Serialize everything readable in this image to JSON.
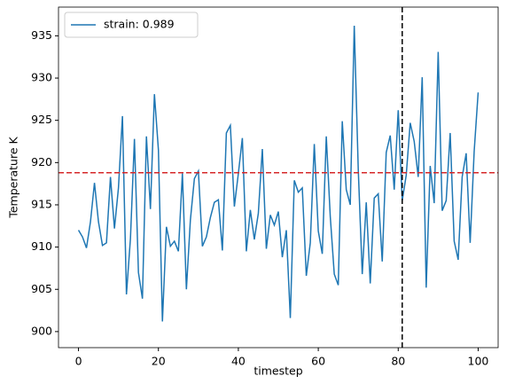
{
  "chart_data": {
    "type": "line",
    "xlabel": "timestep",
    "ylabel": "Temperature K",
    "x": [
      0,
      1,
      2,
      3,
      4,
      5,
      6,
      7,
      8,
      9,
      10,
      11,
      12,
      13,
      14,
      15,
      16,
      17,
      18,
      19,
      20,
      21,
      22,
      23,
      24,
      25,
      26,
      27,
      28,
      29,
      30,
      31,
      32,
      33,
      34,
      35,
      36,
      37,
      38,
      39,
      40,
      41,
      42,
      43,
      44,
      45,
      46,
      47,
      48,
      49,
      50,
      51,
      52,
      53,
      54,
      55,
      56,
      57,
      58,
      59,
      60,
      61,
      62,
      63,
      64,
      65,
      66,
      67,
      68,
      69,
      70,
      71,
      72,
      73,
      74,
      75,
      76,
      77,
      78,
      79,
      80,
      81,
      82,
      83,
      84,
      85,
      86,
      87,
      88,
      89,
      90,
      91,
      92,
      93,
      94,
      95,
      96,
      97,
      98,
      99,
      100
    ],
    "series": [
      {
        "name": "strain: 0.989",
        "color": "#1f77b4",
        "values": [
          912,
          911.2,
          909.9,
          913,
          917.6,
          913,
          910.2,
          910.5,
          918.3,
          912.2,
          917,
          925.5,
          904.4,
          911,
          922.8,
          907,
          903.9,
          923.1,
          914.5,
          928.1,
          921.5,
          901.2,
          912.4,
          910.1,
          910.7,
          909.5,
          918.7,
          905,
          913.2,
          918.1,
          919,
          910.1,
          911.2,
          913.5,
          915.3,
          915.6,
          909.6,
          923.5,
          924.4,
          914.8,
          918.7,
          922.9,
          909.5,
          914.4,
          910.9,
          914,
          921.6,
          909.8,
          913.8,
          912.6,
          914.2,
          908.8,
          912,
          901.6,
          917.9,
          916.5,
          917,
          906.6,
          910.5,
          922.2,
          911.9,
          909.2,
          923.1,
          913.6,
          906.8,
          905.5,
          924.9,
          916.8,
          915,
          936.2,
          919.2,
          906.8,
          915.3,
          905.7,
          915.8,
          916.3,
          908.3,
          921.2,
          923.2,
          916.8,
          926.2,
          915.5,
          918.5,
          924.7,
          922.5,
          918.3,
          930.1,
          905.2,
          919.6,
          915.2,
          933.1,
          914.3,
          915.5,
          923.5,
          910.7,
          908.5,
          918.3,
          921.1,
          910.5,
          921.3,
          928.3
        ]
      }
    ],
    "hline": {
      "value": 918.8,
      "color": "#d62728"
    },
    "vline": {
      "value": 81,
      "color": "#000000"
    },
    "xlim": [
      -5,
      105
    ],
    "ylim": [
      898.1,
      938.4
    ],
    "xticks": [
      0,
      20,
      40,
      60,
      80,
      100
    ],
    "yticks": [
      900,
      905,
      910,
      915,
      920,
      925,
      930,
      935
    ],
    "legend": "upper left"
  }
}
